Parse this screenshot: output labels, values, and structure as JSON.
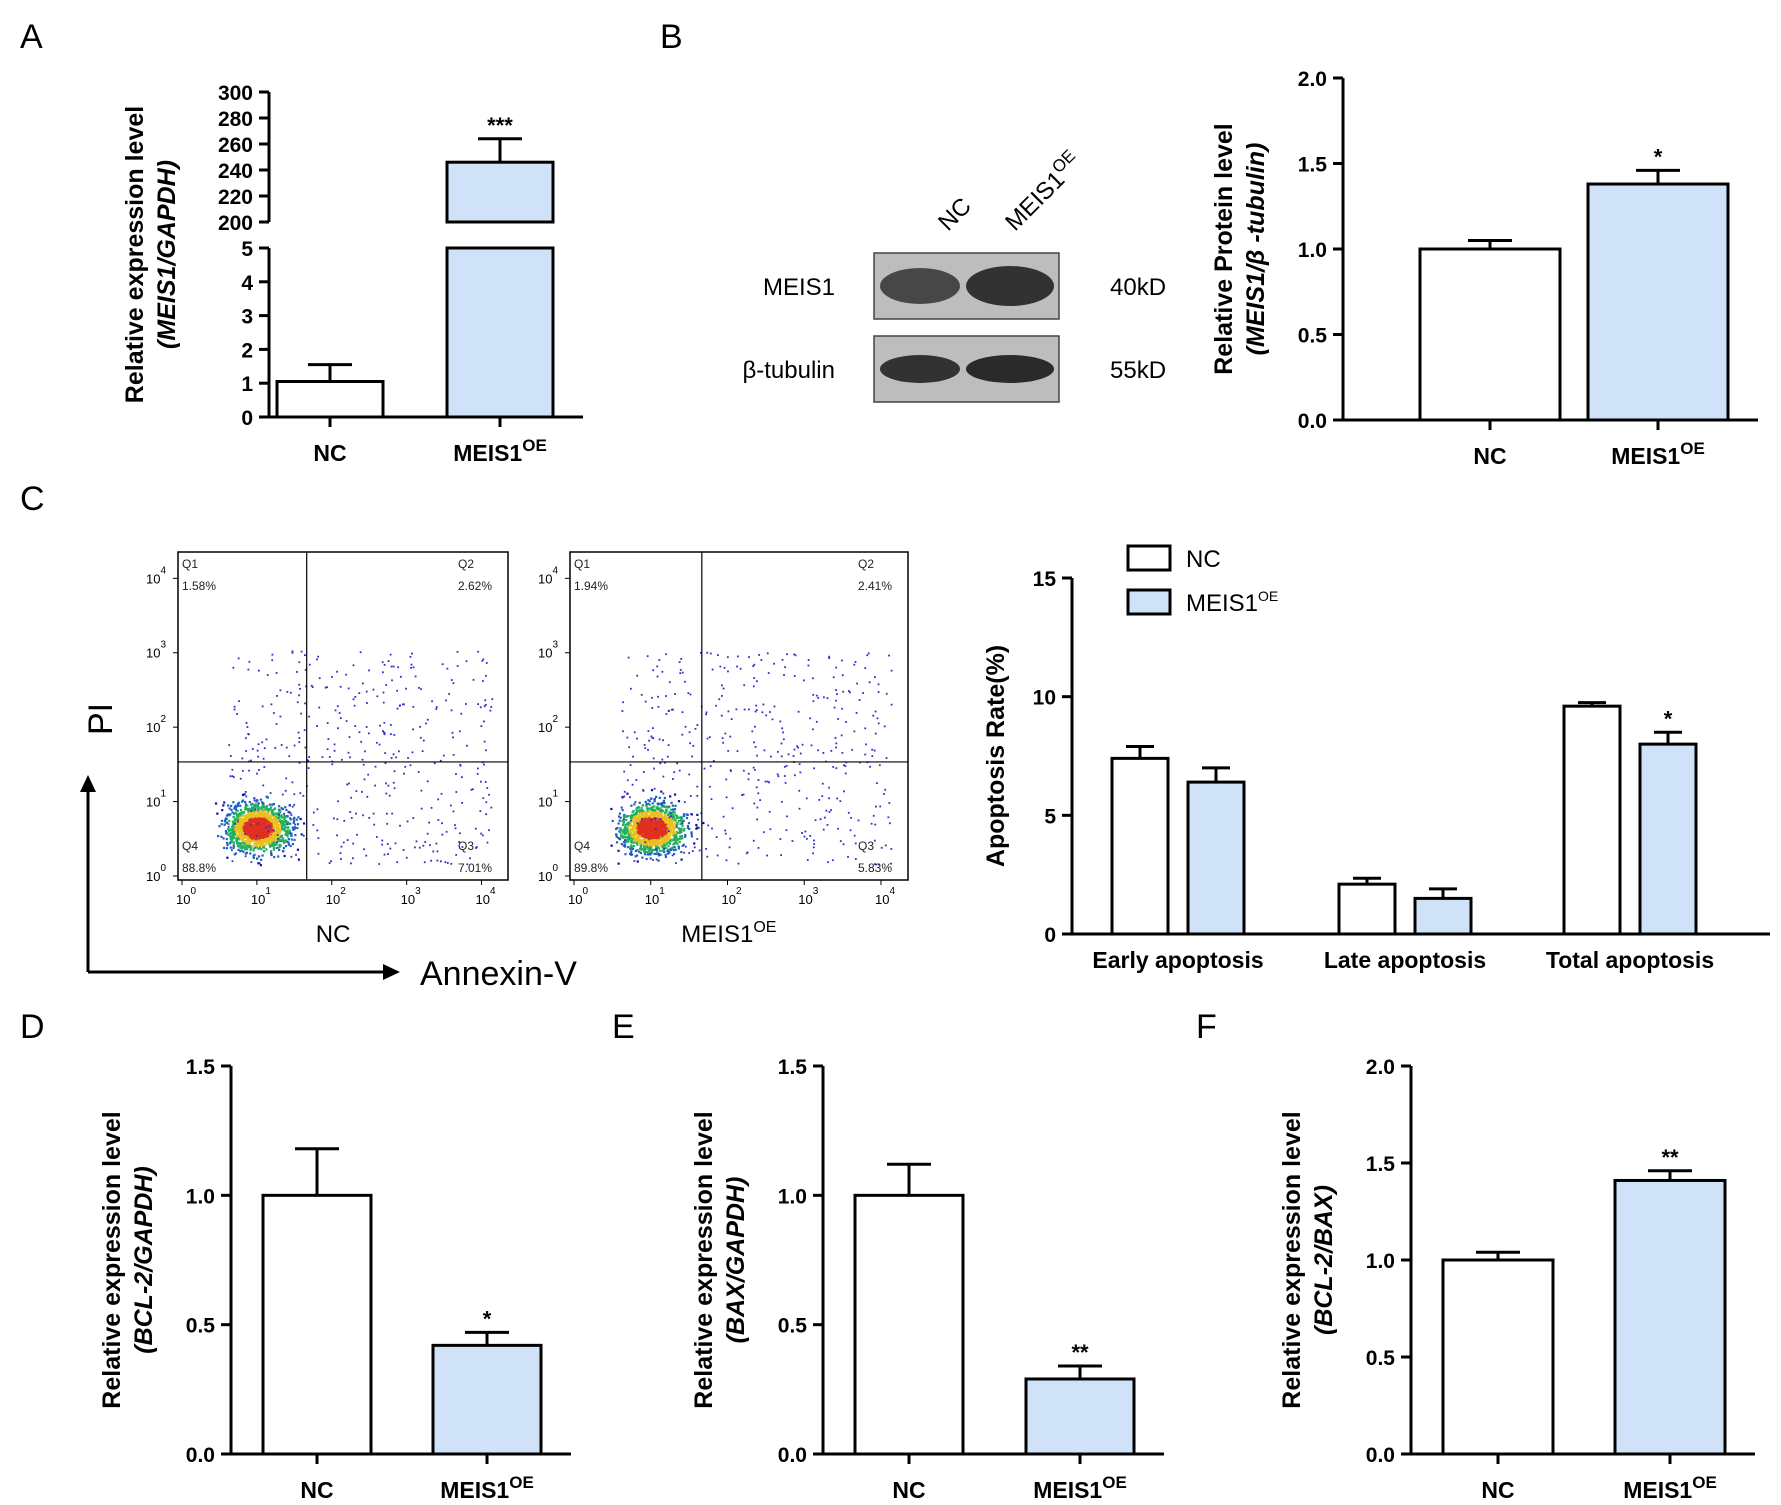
{
  "colors": {
    "nc": "#ffffff",
    "oe": "#cfe2f7",
    "stroke": "#000000"
  },
  "panels": [
    {
      "id": "A",
      "letter": "A",
      "type": "bar-broken",
      "ylabel_line1": "Relative expression level",
      "ylabel_line2": "(MEIS1/GAPDH)",
      "categories": [
        {
          "main": "NC",
          "sup": ""
        },
        {
          "main": "MEIS1",
          "sup": "OE"
        }
      ],
      "values": [
        1.05,
        246
      ],
      "errors": [
        0.5,
        18
      ],
      "sig": [
        "",
        "***"
      ],
      "lower_ticks": [
        "0",
        "1",
        "2",
        "3",
        "4",
        "5"
      ],
      "upper_ticks": [
        "200",
        "220",
        "240",
        "260",
        "280",
        "300"
      ]
    },
    {
      "id": "B",
      "letter": "B",
      "type": "bar",
      "ylabel_line1": "Relative Protein level",
      "ylabel_line2": "(MEIS1/β -tubulin)",
      "categories": [
        {
          "main": "NC",
          "sup": ""
        },
        {
          "main": "MEIS1",
          "sup": "OE"
        }
      ],
      "values": [
        1.0,
        1.38
      ],
      "errors": [
        0.05,
        0.08
      ],
      "sig": [
        "",
        "*"
      ],
      "ylim": [
        0,
        2.0
      ],
      "ticks": [
        0,
        0.5,
        1.0,
        1.5,
        2.0
      ],
      "tick_labels": [
        "0.0",
        "0.5",
        "1.0",
        "1.5",
        "2.0"
      ]
    },
    {
      "id": "C",
      "letter": "C",
      "type": "grouped-bar",
      "ylabel": "Apoptosis Rate(%)",
      "groups": [
        "Early apoptosis",
        "Late apoptosis",
        "Total apoptosis"
      ],
      "series": [
        {
          "name": "NC",
          "values": [
            7.4,
            2.1,
            9.6
          ],
          "errors": [
            0.5,
            0.25,
            0.15
          ]
        },
        {
          "name": "MEIS1",
          "sup": "OE",
          "values": [
            6.4,
            1.5,
            8.0
          ],
          "errors": [
            0.6,
            0.4,
            0.5
          ]
        }
      ],
      "sig": [
        [
          "",
          ""
        ],
        [
          "",
          ""
        ],
        [
          "",
          "*"
        ]
      ],
      "ylim": [
        0,
        15
      ],
      "ticks": [
        0,
        5,
        10,
        15
      ],
      "tick_labels": [
        "0",
        "5",
        "10",
        "15"
      ]
    },
    {
      "id": "D",
      "letter": "D",
      "type": "bar",
      "ylabel_line1": "Relative expression level",
      "ylabel_line2": "(BCL-2/GAPDH)",
      "categories": [
        {
          "main": "NC",
          "sup": ""
        },
        {
          "main": "MEIS1",
          "sup": "OE"
        }
      ],
      "values": [
        1.0,
        0.42
      ],
      "errors": [
        0.18,
        0.05
      ],
      "sig": [
        "",
        "*"
      ],
      "ylim": [
        0,
        1.5
      ],
      "ticks": [
        0,
        0.5,
        1.0,
        1.5
      ],
      "tick_labels": [
        "0.0",
        "0.5",
        "1.0",
        "1.5"
      ]
    },
    {
      "id": "E",
      "letter": "E",
      "type": "bar",
      "ylabel_line1": "Relative expression level",
      "ylabel_line2": "(BAX/GAPDH)",
      "categories": [
        {
          "main": "NC",
          "sup": ""
        },
        {
          "main": "MEIS1",
          "sup": "OE"
        }
      ],
      "values": [
        1.0,
        0.29
      ],
      "errors": [
        0.12,
        0.05
      ],
      "sig": [
        "",
        "**"
      ],
      "ylim": [
        0,
        1.5
      ],
      "ticks": [
        0,
        0.5,
        1.0,
        1.5
      ],
      "tick_labels": [
        "0.0",
        "0.5",
        "1.0",
        "1.5"
      ]
    },
    {
      "id": "F",
      "letter": "F",
      "type": "bar",
      "ylabel_line1": "Relative expression level",
      "ylabel_line2": "(BCL-2/BAX)",
      "categories": [
        {
          "main": "NC",
          "sup": ""
        },
        {
          "main": "MEIS1",
          "sup": "OE"
        }
      ],
      "values": [
        1.0,
        1.41
      ],
      "errors": [
        0.04,
        0.05
      ],
      "sig": [
        "",
        "**"
      ],
      "ylim": [
        0,
        2.0
      ],
      "ticks": [
        0,
        0.5,
        1.0,
        1.5,
        2.0
      ],
      "tick_labels": [
        "0.0",
        "0.5",
        "1.0",
        "1.5",
        "2.0"
      ]
    }
  ],
  "chart_data": [
    {
      "panel": "A",
      "type": "bar",
      "categories": [
        "NC",
        "MEIS1OE"
      ],
      "values": [
        1.05,
        246
      ],
      "ylabel": "Relative expression level (MEIS1/GAPDH)",
      "ylim_lower": [
        0,
        5
      ],
      "ylim_upper": [
        200,
        300
      ],
      "annotations": [
        "***"
      ]
    },
    {
      "panel": "B",
      "type": "bar",
      "categories": [
        "NC",
        "MEIS1OE"
      ],
      "values": [
        1.0,
        1.38
      ],
      "ylabel": "Relative Protein level (MEIS1/β -tubulin)",
      "ylim": [
        0,
        2.0
      ],
      "annotations": [
        "*"
      ]
    },
    {
      "panel": "C",
      "type": "bar",
      "categories": [
        "Early apoptosis",
        "Late apoptosis",
        "Total apoptosis"
      ],
      "series": [
        {
          "name": "NC",
          "values": [
            7.4,
            2.1,
            9.6
          ]
        },
        {
          "name": "MEIS1OE",
          "values": [
            6.4,
            1.5,
            8.0
          ]
        }
      ],
      "ylabel": "Apoptosis Rate(%)",
      "ylim": [
        0,
        15
      ],
      "annotations": [
        "*"
      ]
    },
    {
      "panel": "D",
      "type": "bar",
      "categories": [
        "NC",
        "MEIS1OE"
      ],
      "values": [
        1.0,
        0.42
      ],
      "ylabel": "Relative expression level (BCL-2/GAPDH)",
      "ylim": [
        0,
        1.5
      ],
      "annotations": [
        "*"
      ]
    },
    {
      "panel": "E",
      "type": "bar",
      "categories": [
        "NC",
        "MEIS1OE"
      ],
      "values": [
        1.0,
        0.29
      ],
      "ylabel": "Relative expression level (BAX/GAPDH)",
      "ylim": [
        0,
        1.5
      ],
      "annotations": [
        "**"
      ]
    },
    {
      "panel": "F",
      "type": "bar",
      "categories": [
        "NC",
        "MEIS1OE"
      ],
      "values": [
        1.0,
        1.41
      ],
      "ylabel": "Relative expression level (BCL-2/BAX)",
      "ylim": [
        0,
        2.0
      ],
      "annotations": [
        "**"
      ]
    }
  ],
  "western_blot": {
    "lanes": [
      "NC",
      "MEIS1OE"
    ],
    "lane_nc": "NC",
    "lane_oe_main": "MEIS1",
    "lane_oe_sup": "OE",
    "rows": [
      {
        "protein": "MEIS1",
        "size": "40kD"
      },
      {
        "protein": "β-tubulin",
        "size": "55kD"
      }
    ]
  },
  "flow": {
    "y_axis_title": "PI",
    "x_axis_title": "Annexin-V",
    "tick_labels": [
      "10",
      "10",
      "10",
      "10",
      "10"
    ],
    "tick_exponents": [
      "0",
      "1",
      "2",
      "3",
      "4"
    ],
    "plots": [
      {
        "label_main": "NC",
        "label_sup": "",
        "quadrants": [
          {
            "name": "Q1",
            "pct": "1.58%"
          },
          {
            "name": "Q2",
            "pct": "2.62%"
          },
          {
            "name": "Q3",
            "pct": "7.01%"
          },
          {
            "name": "Q4",
            "pct": "88.8%"
          }
        ]
      },
      {
        "label_main": "MEIS1",
        "label_sup": "OE",
        "quadrants": [
          {
            "name": "Q1",
            "pct": "1.94%"
          },
          {
            "name": "Q2",
            "pct": "2.41%"
          },
          {
            "name": "Q3",
            "pct": "5.83%"
          },
          {
            "name": "Q4",
            "pct": "89.8%"
          }
        ]
      }
    ]
  },
  "legend": [
    {
      "main": "NC",
      "sup": ""
    },
    {
      "main": "MEIS1",
      "sup": "OE"
    }
  ]
}
